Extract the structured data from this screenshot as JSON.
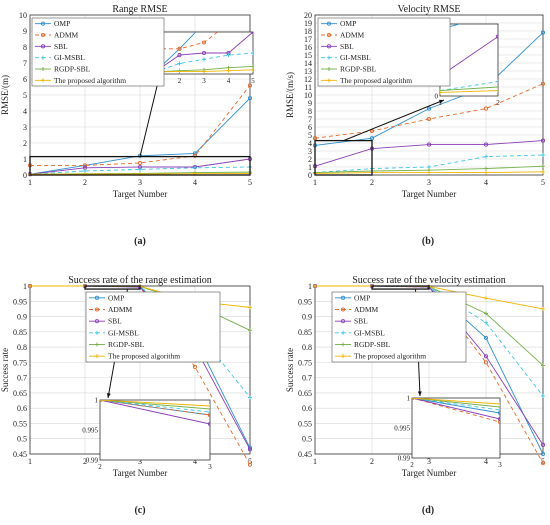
{
  "figure": {
    "colors": {
      "OMP": "#2f8fd0",
      "ADMM": "#e36a2c",
      "SBL": "#8b3fb8",
      "GI-MSBL": "#3fc6e6",
      "RGDP-SBL": "#74b04a",
      "The proposed algorithm": "#f0b400",
      "axis": "#333333",
      "grid": "#d8d8d8"
    }
  },
  "chart_data": [
    {
      "panel": "a",
      "caption": "(a)",
      "type": "line",
      "title": "Range RMSE",
      "xlabel": "Target Number",
      "ylabel": "RMSE/(m)",
      "x": [
        1,
        2,
        3,
        4,
        5
      ],
      "xlim": [
        1,
        5
      ],
      "ylim": [
        0,
        10
      ],
      "xticks": [
        1,
        2,
        3,
        4,
        5
      ],
      "yticks": [
        0,
        1,
        2,
        3,
        4,
        5,
        6,
        7,
        8,
        9,
        10
      ],
      "grid": true,
      "legend_position": "top-left",
      "series": [
        {
          "name": "OMP",
          "values": [
            0.05,
            0.6,
            1.2,
            1.35,
            4.8
          ]
        },
        {
          "name": "ADMM",
          "values": [
            0.6,
            0.6,
            0.75,
            1.2,
            5.6
          ]
        },
        {
          "name": "SBL",
          "values": [
            0.05,
            0.45,
            0.5,
            0.5,
            1.0
          ]
        },
        {
          "name": "GI-MSBL",
          "values": [
            0.05,
            0.25,
            0.35,
            0.45,
            0.5
          ]
        },
        {
          "name": "RGDP-SBL",
          "values": [
            0.05,
            0.08,
            0.1,
            0.15,
            0.18
          ]
        },
        {
          "name": "The proposed algorithm",
          "values": [
            0.05,
            0.06,
            0.06,
            0.08,
            0.1
          ]
        }
      ],
      "zoom": {
        "source_x": [
          1,
          5
        ],
        "source_y": [
          0,
          1.15
        ],
        "inset_xlim": [
          1,
          5
        ],
        "inset_ylim": [
          0,
          1
        ],
        "inset_xticks": [
          1,
          2,
          3,
          4,
          5
        ],
        "inset_yticks": [
          0,
          0.5,
          1
        ]
      }
    },
    {
      "panel": "b",
      "caption": "(b)",
      "type": "line",
      "title": "Velocity RMSE",
      "xlabel": "Target Number",
      "ylabel": "RMSE/(m/s)",
      "x": [
        1,
        2,
        3,
        4,
        5
      ],
      "xlim": [
        1,
        5
      ],
      "ylim": [
        0,
        20
      ],
      "xticks": [
        1,
        2,
        3,
        4,
        5
      ],
      "yticks": [
        0,
        1,
        2,
        3,
        4,
        5,
        6,
        7,
        8,
        9,
        10,
        11,
        12,
        13,
        14,
        15,
        16,
        17,
        18,
        19,
        20
      ],
      "grid": true,
      "legend_position": "top-left",
      "series": [
        {
          "name": "OMP",
          "values": [
            3.7,
            4.6,
            8.3,
            11.0,
            17.8
          ]
        },
        {
          "name": "ADMM",
          "values": [
            4.6,
            5.5,
            7.0,
            8.3,
            11.4
          ]
        },
        {
          "name": "SBL",
          "values": [
            1.1,
            3.3,
            3.8,
            3.8,
            4.3
          ]
        },
        {
          "name": "GI-MSBL",
          "values": [
            0.3,
            0.8,
            1.0,
            2.3,
            2.5
          ]
        },
        {
          "name": "RGDP-SBL",
          "values": [
            0.3,
            0.5,
            0.6,
            0.8,
            1.1
          ]
        },
        {
          "name": "The proposed algorithm",
          "values": [
            0.2,
            0.3,
            0.3,
            0.3,
            0.4
          ]
        }
      ],
      "zoom": {
        "source_x": [
          1,
          2
        ],
        "source_y": [
          0,
          4.3
        ],
        "inset_xlim": [
          1,
          2
        ],
        "inset_ylim": [
          0,
          4
        ],
        "inset_xticks": [
          1,
          2
        ],
        "inset_yticks": [
          0,
          1,
          2,
          3,
          4
        ]
      }
    },
    {
      "panel": "c",
      "caption": "(c)",
      "type": "line",
      "title": "Success rate of the range estimation",
      "xlabel": "Target Number",
      "ylabel": "Success rate",
      "x": [
        1,
        2,
        3,
        4,
        5
      ],
      "xlim": [
        1,
        5
      ],
      "ylim": [
        0.45,
        1
      ],
      "xticks": [
        1,
        2,
        3,
        4,
        5
      ],
      "yticks": [
        0.45,
        0.5,
        0.55,
        0.6,
        0.65,
        0.7,
        0.75,
        0.8,
        0.85,
        0.9,
        0.95,
        1
      ],
      "grid": true,
      "legend_position": "upper-center",
      "series": [
        {
          "name": "OMP",
          "values": [
            1.0,
            1.0,
            0.9975,
            0.83,
            0.47
          ]
        },
        {
          "name": "ADMM",
          "values": [
            1.0,
            1.0,
            0.9975,
            0.735,
            0.415
          ]
        },
        {
          "name": "SBL",
          "values": [
            1.0,
            1.0,
            0.996,
            0.8,
            0.465
          ]
        },
        {
          "name": "GI-MSBL",
          "values": [
            1.0,
            1.0,
            0.998,
            0.86,
            0.635
          ]
        },
        {
          "name": "RGDP-SBL",
          "values": [
            1.0,
            1.0,
            0.9985,
            0.94,
            0.855
          ]
        },
        {
          "name": "The proposed algorithm",
          "values": [
            1.0,
            1.0,
            0.999,
            0.95,
            0.93
          ]
        }
      ],
      "zoom": {
        "source_x": [
          2,
          3
        ],
        "source_y": [
          0.99,
          1
        ],
        "inset_xlim": [
          2,
          3
        ],
        "inset_ylim": [
          0.99,
          1
        ],
        "inset_xticks": [
          2,
          3
        ],
        "inset_yticks": [
          0.99,
          0.995,
          1
        ]
      }
    },
    {
      "panel": "d",
      "caption": "(d)",
      "type": "line",
      "title": "Success rate of the velocity estimation",
      "xlabel": "Target Number",
      "ylabel": "Success rate",
      "x": [
        1,
        2,
        3,
        4,
        5
      ],
      "xlim": [
        1,
        5
      ],
      "ylim": [
        0.45,
        1
      ],
      "xticks": [
        1,
        2,
        3,
        4,
        5
      ],
      "yticks": [
        0.45,
        0.5,
        0.55,
        0.6,
        0.65,
        0.7,
        0.75,
        0.8,
        0.85,
        0.9,
        0.95,
        1
      ],
      "grid": true,
      "legend_position": "upper-center",
      "series": [
        {
          "name": "OMP",
          "values": [
            1.0,
            1.0,
            0.9975,
            0.83,
            0.45
          ]
        },
        {
          "name": "ADMM",
          "values": [
            1.0,
            1.0,
            0.996,
            0.75,
            0.42
          ]
        },
        {
          "name": "SBL",
          "values": [
            1.0,
            1.0,
            0.9965,
            0.77,
            0.48
          ]
        },
        {
          "name": "GI-MSBL",
          "values": [
            1.0,
            1.0,
            0.998,
            0.88,
            0.64
          ]
        },
        {
          "name": "RGDP-SBL",
          "values": [
            1.0,
            1.0,
            0.9985,
            0.91,
            0.74
          ]
        },
        {
          "name": "The proposed algorithm",
          "values": [
            1.0,
            1.0,
            0.999,
            0.96,
            0.925
          ]
        }
      ],
      "zoom": {
        "source_x": [
          2,
          3
        ],
        "source_y": [
          0.99,
          1
        ],
        "inset_xlim": [
          2,
          3
        ],
        "inset_ylim": [
          0.99,
          1
        ],
        "inset_xticks": [
          2,
          3
        ],
        "inset_yticks": [
          0.99,
          0.995,
          1
        ]
      }
    }
  ]
}
